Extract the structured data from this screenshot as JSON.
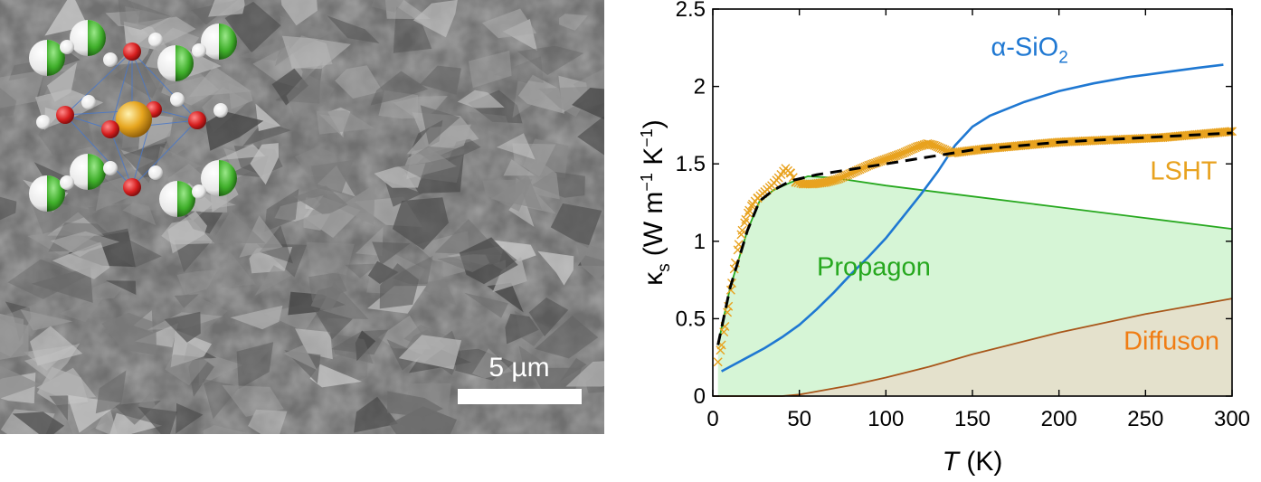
{
  "figure": {
    "panels": [
      "SEM micrograph with molecular structure inset",
      "thermal conductivity plot"
    ]
  },
  "sem": {
    "scale_bar_label": "5 µm",
    "atom_colors": {
      "large_center": "#e6a51e",
      "oxygen": "#d61f1f",
      "hydrogen": "#ffffff",
      "chlorine_half": "#3fae2a"
    }
  },
  "chart_data": {
    "type": "line",
    "xlabel_italic": "T",
    "xlabel_unit": "(K)",
    "ylabel_base": "κ",
    "ylabel_sub": "s",
    "ylabel_units": [
      "(W m",
      "−1",
      " K",
      "−1",
      ")"
    ],
    "xlim": [
      0,
      300
    ],
    "ylim": [
      0,
      2.5
    ],
    "xticks": [
      0,
      50,
      100,
      150,
      200,
      250,
      300
    ],
    "yticks": [
      0,
      0.5,
      1,
      1.5,
      2,
      2.5
    ],
    "xtick_labels": [
      "0",
      "50",
      "100",
      "150",
      "200",
      "250",
      "300"
    ],
    "ytick_labels": [
      "0",
      "0.5",
      "1",
      "1.5",
      "2",
      "2.5"
    ],
    "grid": false,
    "annotations": [
      {
        "text": "α-SiO",
        "sub": "2",
        "color": "#1f78d2",
        "x": 183,
        "y": 2.2
      },
      {
        "text": "LSHT",
        "color": "#e8a21f",
        "x": 272,
        "y": 1.4
      },
      {
        "text": "Propagon",
        "color": "#27a81f",
        "x": 93,
        "y": 0.78
      },
      {
        "text": "Diffuson",
        "color": "#f07d14",
        "x": 265,
        "y": 0.3
      }
    ],
    "series": [
      {
        "name": "α-SiO2",
        "color": "#1f78d2",
        "style": "solid",
        "x": [
          5,
          10,
          20,
          30,
          40,
          50,
          60,
          70,
          80,
          90,
          100,
          110,
          120,
          130,
          140,
          150,
          160,
          180,
          200,
          220,
          240,
          260,
          280,
          295
        ],
        "y": [
          0.16,
          0.19,
          0.25,
          0.31,
          0.38,
          0.46,
          0.56,
          0.67,
          0.79,
          0.9,
          1.02,
          1.16,
          1.3,
          1.45,
          1.62,
          1.74,
          1.81,
          1.9,
          1.97,
          2.02,
          2.06,
          2.09,
          2.12,
          2.14
        ]
      },
      {
        "name": "LSHT",
        "color": "#e8a21f",
        "style": "markers",
        "x": [
          3,
          5,
          7,
          9,
          11,
          13,
          15,
          17,
          19,
          21,
          23,
          26,
          30,
          34,
          38,
          42,
          45,
          48,
          52,
          58,
          65,
          72,
          80,
          90,
          100,
          110,
          118,
          124,
          128,
          132,
          138,
          145,
          160,
          180,
          200,
          220,
          240,
          260,
          280,
          300
        ],
        "y": [
          0.22,
          0.33,
          0.45,
          0.58,
          0.73,
          0.86,
          0.98,
          1.07,
          1.14,
          1.2,
          1.24,
          1.28,
          1.32,
          1.36,
          1.41,
          1.47,
          1.44,
          1.38,
          1.37,
          1.37,
          1.38,
          1.4,
          1.44,
          1.49,
          1.53,
          1.57,
          1.61,
          1.63,
          1.62,
          1.6,
          1.57,
          1.58,
          1.6,
          1.62,
          1.64,
          1.65,
          1.66,
          1.67,
          1.69,
          1.71
        ]
      },
      {
        "name": "total fit",
        "color": "#000000",
        "style": "dashed",
        "x": [
          3,
          10,
          20,
          27,
          35,
          45,
          60,
          100,
          150,
          200,
          250,
          300
        ],
        "y": [
          0.33,
          0.7,
          1.07,
          1.26,
          1.33,
          1.39,
          1.43,
          1.5,
          1.59,
          1.64,
          1.67,
          1.7
        ]
      },
      {
        "name": "Propagon",
        "color": "#27a81f",
        "style": "solid",
        "fill": "#d6f5d6",
        "x": [
          3,
          10,
          20,
          27,
          35,
          45,
          55,
          70,
          100,
          150,
          200,
          250,
          300
        ],
        "y": [
          0.33,
          0.7,
          1.07,
          1.26,
          1.33,
          1.38,
          1.42,
          1.41,
          1.36,
          1.29,
          1.22,
          1.15,
          1.08
        ]
      },
      {
        "name": "Diffuson",
        "color": "#a8561a",
        "style": "solid",
        "fill": "#e4e1cc",
        "x": [
          0,
          30,
          40,
          50,
          60,
          80,
          100,
          125,
          150,
          175,
          200,
          225,
          250,
          275,
          300
        ],
        "y": [
          0,
          0,
          0,
          0.01,
          0.03,
          0.07,
          0.12,
          0.19,
          0.27,
          0.34,
          0.41,
          0.47,
          0.53,
          0.58,
          0.63
        ]
      }
    ]
  }
}
